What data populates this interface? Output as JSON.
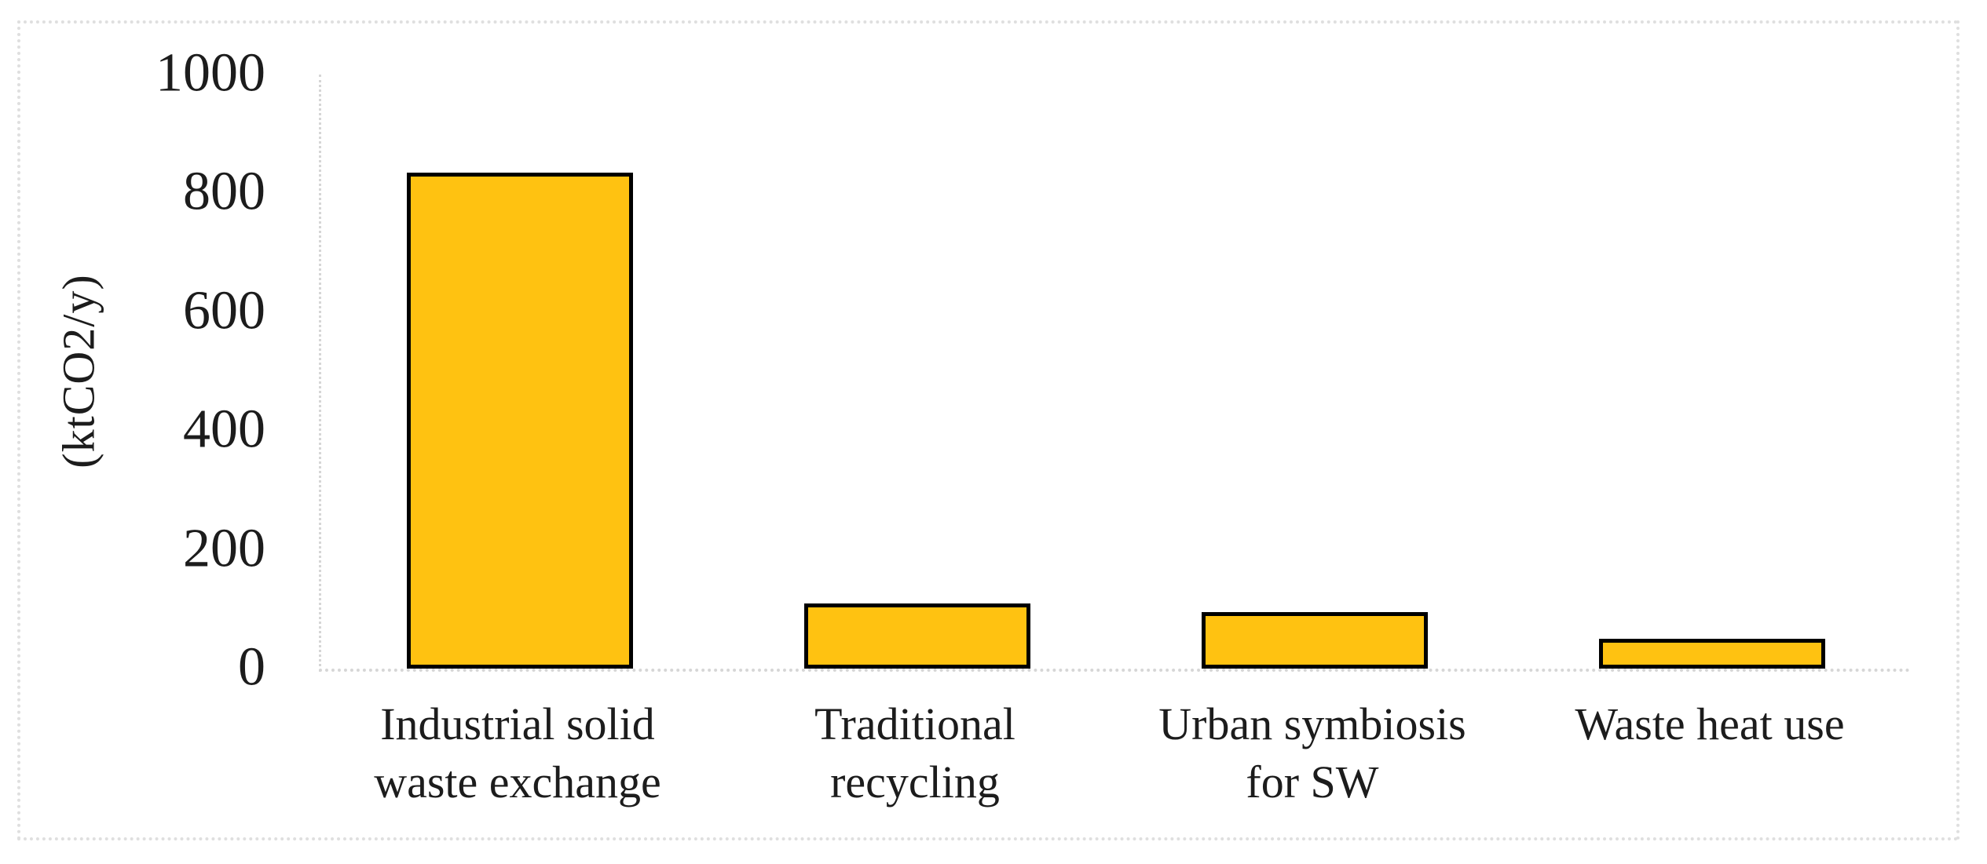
{
  "chart_data": {
    "type": "bar",
    "title": "",
    "ylabel": "(ktCO2/y)",
    "categories": [
      "Industrial solid waste exchange",
      "Traditional recycling",
      "Urban symbiosis for SW",
      "Waste heat use"
    ],
    "category_lines": [
      [
        "Industrial solid",
        "waste exchange"
      ],
      [
        "Traditional",
        "recycling"
      ],
      [
        "Urban symbiosis",
        "for SW"
      ],
      [
        "Waste heat use"
      ]
    ],
    "values": [
      835,
      110,
      95,
      50
    ],
    "yticks": [
      0,
      200,
      400,
      600,
      800,
      1000
    ],
    "ylim": [
      0,
      1000
    ],
    "grid": false,
    "legend": "none",
    "bar_fill": "#FFC211",
    "bar_border": "#000000",
    "axis_color": "#D6D6D6",
    "frame_color": "#DFDFDF"
  }
}
